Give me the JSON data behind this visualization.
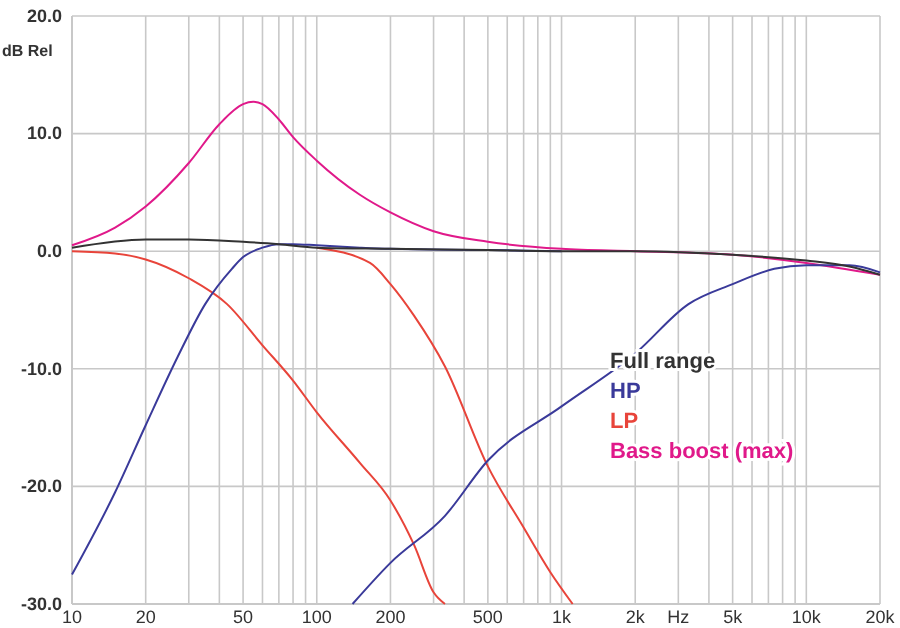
{
  "chart_data": {
    "type": "line",
    "ylabel": "dB Rel",
    "xlim": [
      10,
      20000
    ],
    "ylim": [
      -30,
      20
    ],
    "log": "x",
    "grid": true,
    "legend": "bottom right",
    "line_style": "solid",
    "marker": "none",
    "xticks": [
      {
        "value": 10,
        "label": "10"
      },
      {
        "value": 20,
        "label": "20"
      },
      {
        "value": 30,
        "label": null
      },
      {
        "value": 40,
        "label": null
      },
      {
        "value": 50,
        "label": "50"
      },
      {
        "value": 60,
        "label": null
      },
      {
        "value": 70,
        "label": null
      },
      {
        "value": 80,
        "label": null
      },
      {
        "value": 90,
        "label": null
      },
      {
        "value": 100,
        "label": "100"
      },
      {
        "value": 200,
        "label": "200"
      },
      {
        "value": 300,
        "label": null
      },
      {
        "value": 400,
        "label": null
      },
      {
        "value": 500,
        "label": "500"
      },
      {
        "value": 600,
        "label": null
      },
      {
        "value": 700,
        "label": null
      },
      {
        "value": 800,
        "label": null
      },
      {
        "value": 900,
        "label": null
      },
      {
        "value": 1000,
        "label": "1k"
      },
      {
        "value": 2000,
        "label": "2k"
      },
      {
        "value": 3000,
        "label": "Hz"
      },
      {
        "value": 4000,
        "label": null
      },
      {
        "value": 5000,
        "label": "5k"
      },
      {
        "value": 6000,
        "label": null
      },
      {
        "value": 7000,
        "label": null
      },
      {
        "value": 8000,
        "label": null
      },
      {
        "value": 9000,
        "label": null
      },
      {
        "value": 10000,
        "label": "10k"
      },
      {
        "value": 20000,
        "label": "20k"
      }
    ],
    "yticks": [
      {
        "value": 20,
        "label": "20.0"
      },
      {
        "value": 10,
        "label": "10.0"
      },
      {
        "value": 0,
        "label": "0.0"
      },
      {
        "value": -10,
        "label": "-10.0"
      },
      {
        "value": -20,
        "label": "-20.0"
      },
      {
        "value": -30,
        "label": "-30.0"
      }
    ],
    "series": [
      {
        "name": "Full range",
        "color": "#333333",
        "x": [
          10,
          20,
          30,
          50,
          70,
          100,
          200,
          500,
          1000,
          2000,
          5000,
          10000,
          15000,
          20000
        ],
        "values": [
          0.3,
          1.0,
          1.0,
          0.8,
          0.6,
          0.3,
          0.2,
          0.1,
          0,
          0,
          -0.3,
          -0.8,
          -1.3,
          -2
        ]
      },
      {
        "name": "HP",
        "color": "#3a3a9a",
        "x": [
          10,
          15,
          20,
          27,
          35,
          45,
          50,
          60,
          70,
          80,
          100,
          150,
          200,
          500,
          1000
        ],
        "values": [
          -27.5,
          -20.5,
          -14.8,
          -9,
          -4.5,
          -1.5,
          -0.5,
          0.3,
          0.6,
          0.6,
          0.5,
          0.3,
          0.2,
          0.1,
          0
        ]
      },
      {
        "color": "#3a3a9a",
        "x": [
          140,
          200,
          334,
          500,
          1000,
          2000,
          3300,
          5000,
          7400,
          10000,
          15000,
          20000
        ],
        "values": [
          -30,
          -26.5,
          -22.5,
          -17.8,
          -13.2,
          -8.7,
          -4.5,
          -2.8,
          -1.5,
          -1.2,
          -1.2,
          -1.8
        ]
      },
      {
        "name": "LP",
        "color": "#e8443a",
        "x": [
          10,
          15,
          20,
          30,
          43,
          60,
          80,
          100,
          150,
          200,
          250,
          300,
          334
        ],
        "values": [
          0,
          -0.2,
          -0.7,
          -2.3,
          -4.5,
          -8,
          -11,
          -13.7,
          -18,
          -21.2,
          -25,
          -29,
          -30
        ]
      },
      {
        "color": "#e8443a",
        "x": [
          100,
          165,
          200,
          250,
          334,
          500,
          700,
          900,
          1110
        ],
        "values": [
          0.3,
          -1,
          -2.8,
          -5.5,
          -9.8,
          -18.3,
          -23.5,
          -27.3,
          -30
        ]
      },
      {
        "name": "Bass boost (max)",
        "color": "#e0198a",
        "x": [
          10,
          15,
          20,
          30,
          40,
          50,
          55,
          60,
          70,
          80,
          100,
          150,
          200,
          300,
          500,
          1000,
          2000,
          5000,
          20000
        ],
        "values": [
          0.5,
          2,
          3.8,
          7.5,
          10.8,
          12.5,
          12.7,
          12.5,
          11.2,
          9.7,
          7.7,
          4.8,
          3.3,
          1.7,
          0.8,
          0.2,
          0,
          -0.3,
          -2
        ]
      }
    ]
  }
}
